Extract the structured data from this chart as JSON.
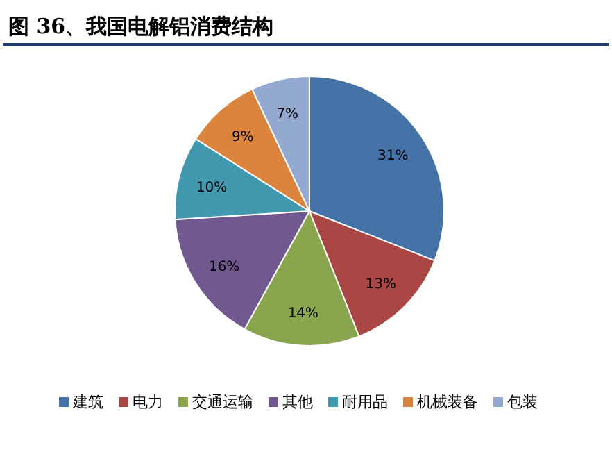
{
  "chart_data": {
    "type": "pie",
    "title": "图 36、我国电解铝消费结构",
    "categories": [
      "建筑",
      "电力",
      "交通运输",
      "其他",
      "耐用品",
      "机械装备",
      "包装"
    ],
    "values": [
      31,
      13,
      14,
      16,
      10,
      9,
      7
    ],
    "value_labels": [
      "31%",
      "13%",
      "14%",
      "16%",
      "10%",
      "9%",
      "7%"
    ],
    "colors": [
      "#4572a7",
      "#aa4643",
      "#89a54e",
      "#71588f",
      "#4198af",
      "#db843d",
      "#93a9cf"
    ],
    "legend": "bottom"
  }
}
